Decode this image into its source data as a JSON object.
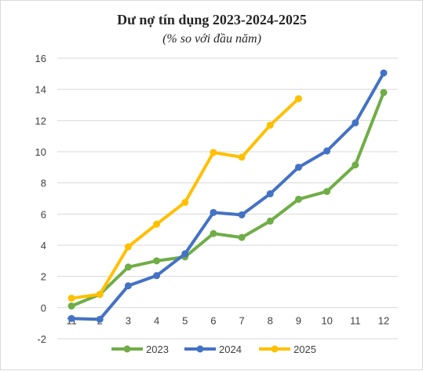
{
  "chart_data": {
    "type": "line",
    "title": "Dư nợ tín dụng 2023-2024-2025",
    "subtitle": "(% so với đầu năm)",
    "xlabel": "",
    "ylabel": "",
    "categories": [
      "11",
      "2",
      "3",
      "4",
      "5",
      "6",
      "7",
      "8",
      "9",
      "10",
      "11",
      "12"
    ],
    "ylim": [
      -2,
      16
    ],
    "yticks": [
      -2,
      0,
      2,
      4,
      6,
      8,
      10,
      12,
      14,
      16
    ],
    "grid": true,
    "legend": "bottom",
    "series": [
      {
        "name": "2023",
        "color": "#70AD47",
        "values": [
          0.1,
          0.85,
          2.6,
          3.0,
          3.25,
          4.75,
          4.5,
          5.55,
          6.95,
          7.45,
          9.15,
          13.8
        ]
      },
      {
        "name": "2024",
        "color": "#4472C4",
        "values": [
          -0.7,
          -0.75,
          1.4,
          2.05,
          3.45,
          6.1,
          5.95,
          7.3,
          9.0,
          10.05,
          11.85,
          15.05
        ]
      },
      {
        "name": "2025",
        "color": "#FFC000",
        "values": [
          0.6,
          0.85,
          3.9,
          5.35,
          6.75,
          9.95,
          9.65,
          11.7,
          13.4,
          null,
          null,
          null
        ]
      }
    ]
  }
}
